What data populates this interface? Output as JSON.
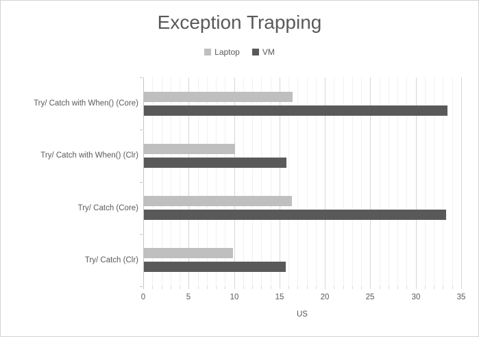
{
  "window": {
    "background": "#FFFFFF",
    "border_color": "#D3D3D3"
  },
  "chart_data": {
    "type": "bar",
    "orientation": "horizontal",
    "title": "Exception Trapping",
    "categories": [
      "Try/ Catch with When() (Core)",
      "Try/ Catch with When() (Clr)",
      "Try/ Catch (Core)",
      "Try/ Catch (Clr)"
    ],
    "series": [
      {
        "name": "Laptop",
        "color": "#BFBFBF",
        "values": [
          16.4,
          10.0,
          16.3,
          9.8
        ]
      },
      {
        "name": "VM",
        "color": "#595959",
        "values": [
          33.4,
          15.7,
          33.3,
          15.6
        ]
      }
    ],
    "xlabel": "US",
    "ylabel": "",
    "xlim": [
      0,
      35
    ],
    "x_ticks": [
      0,
      5,
      10,
      15,
      20,
      25,
      30,
      35
    ],
    "x_major_step": 5,
    "x_minor_step": 1,
    "legend_position": "top",
    "grid": "vertical minor + major",
    "colors": {
      "text": "#595959",
      "title": "#595959",
      "major_grid": "#D6D6D6",
      "minor_grid": "#F0F0F0",
      "axis_line": "#C4C4C4"
    }
  }
}
